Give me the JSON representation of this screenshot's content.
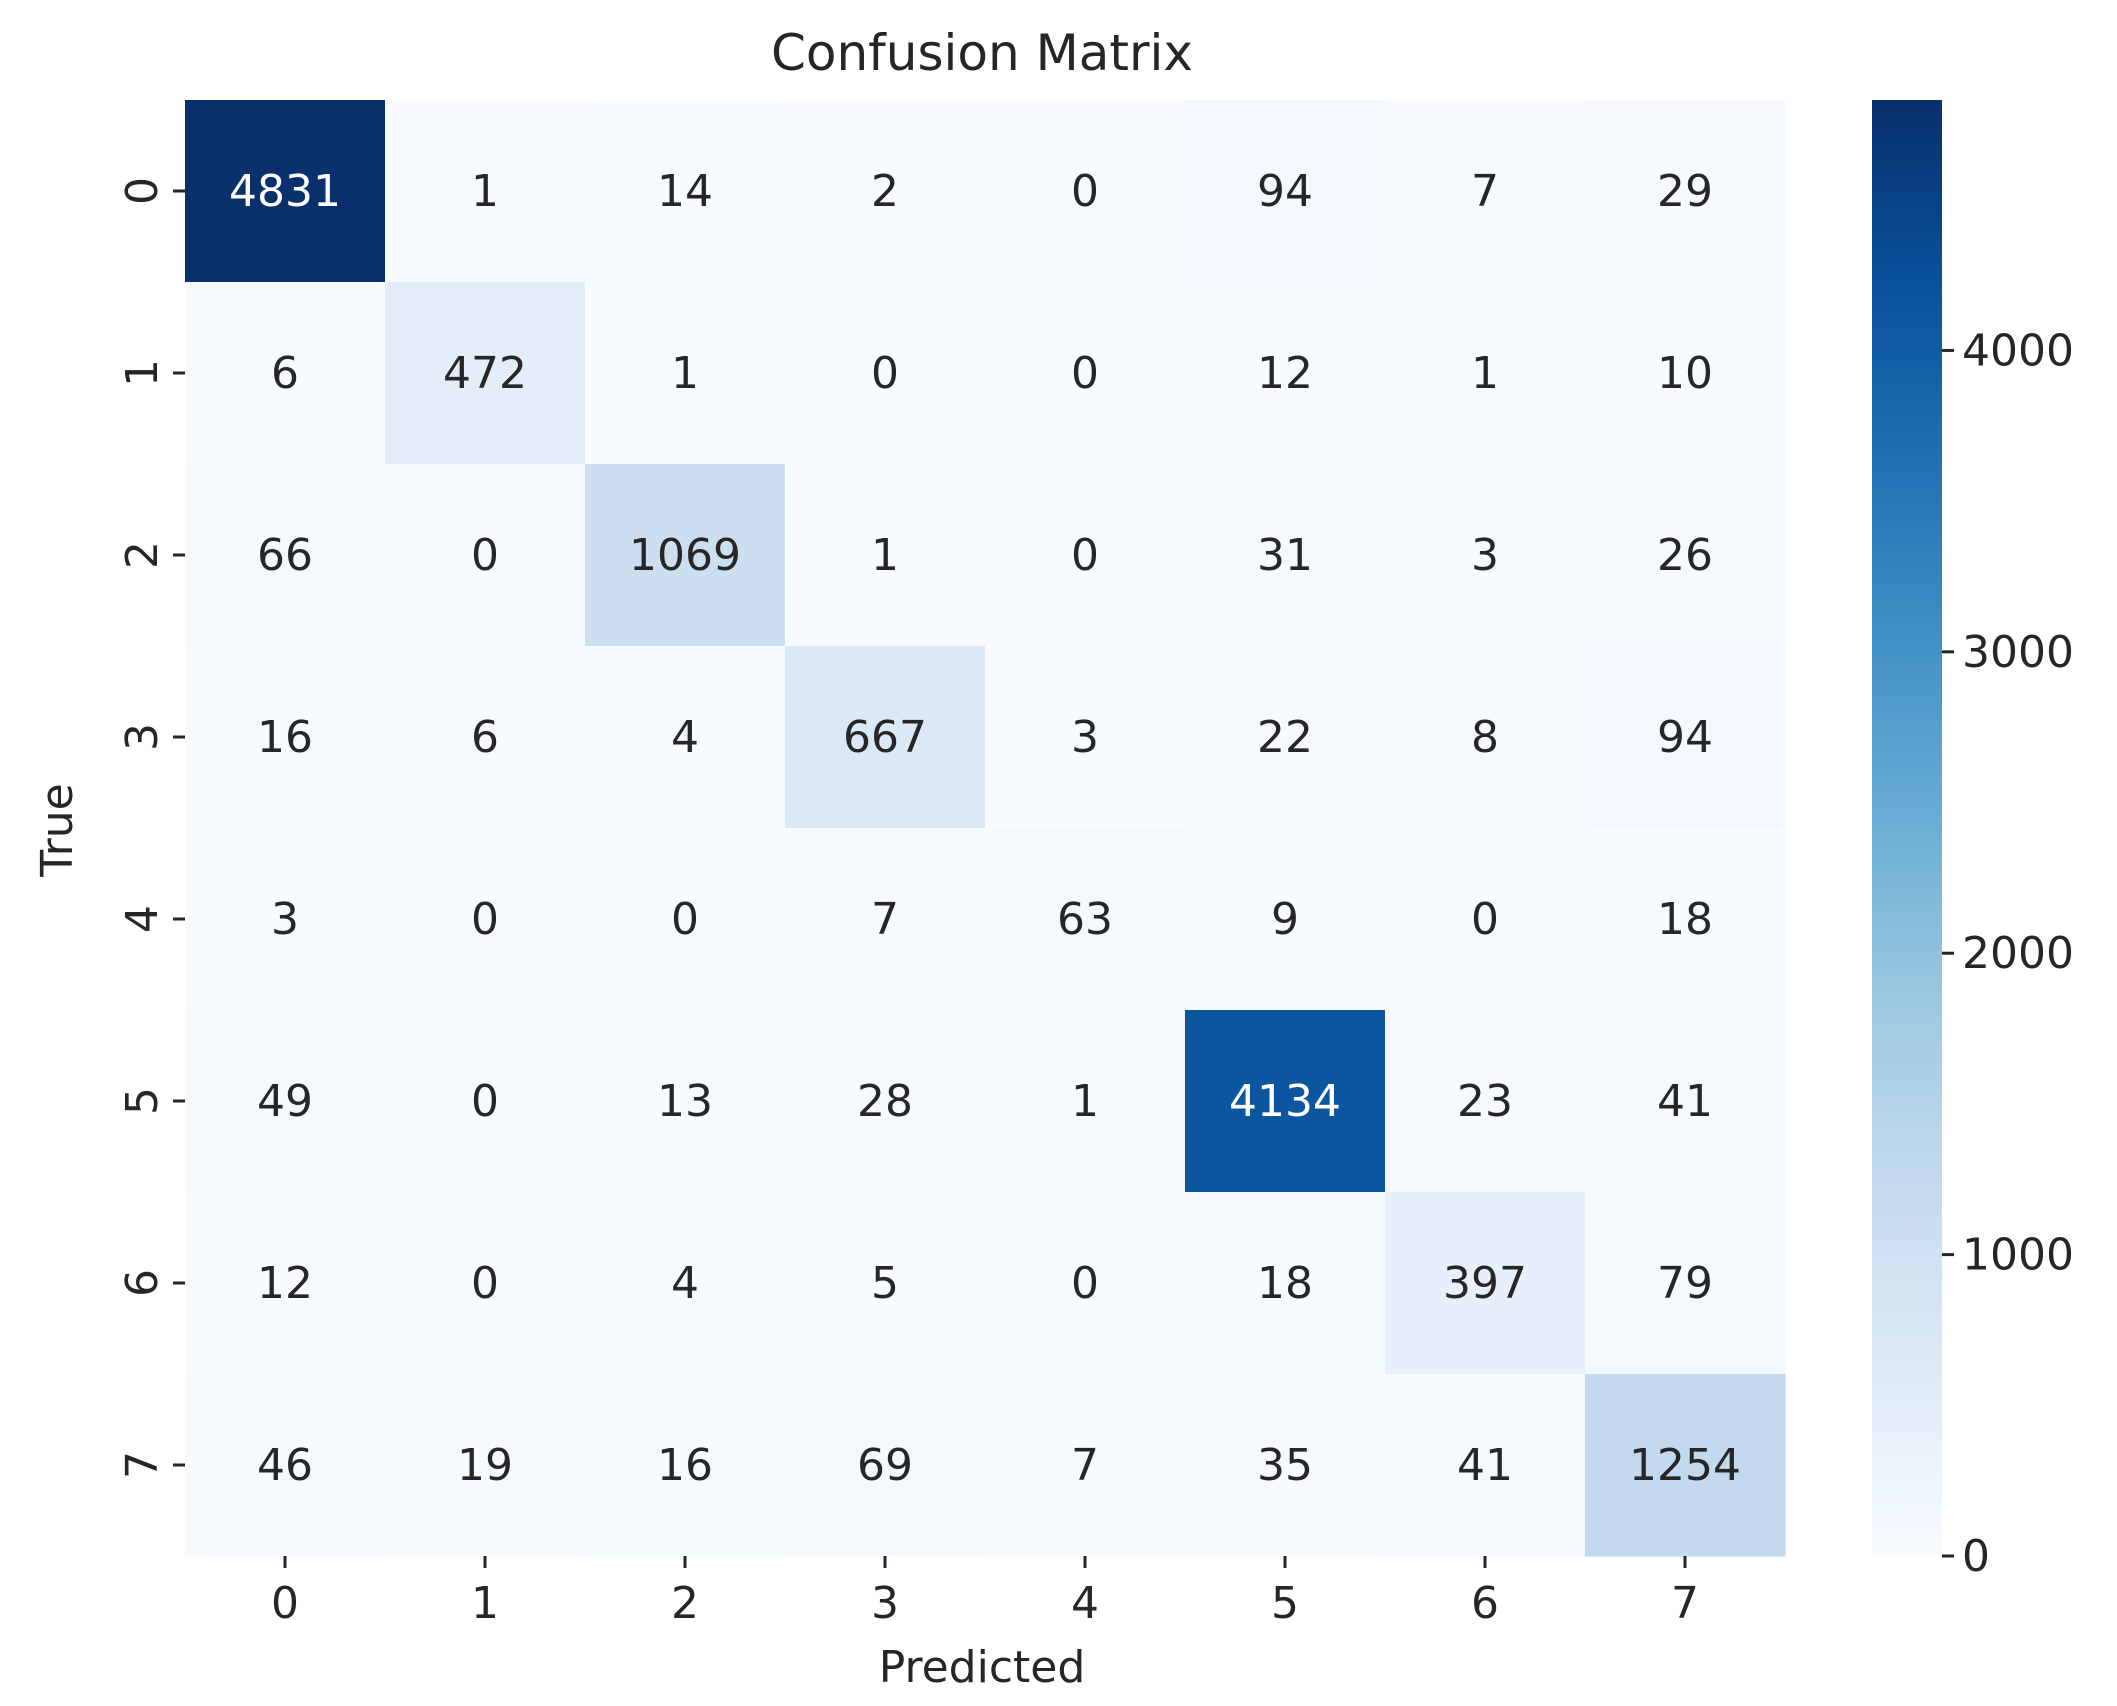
{
  "chart_data": {
    "type": "heatmap",
    "title": "Confusion Matrix",
    "xlabel": "Predicted",
    "ylabel": "True",
    "x_categories": [
      "0",
      "1",
      "2",
      "3",
      "4",
      "5",
      "6",
      "7"
    ],
    "y_categories": [
      "0",
      "1",
      "2",
      "3",
      "4",
      "5",
      "6",
      "7"
    ],
    "values": [
      [
        4831,
        1,
        14,
        2,
        0,
        94,
        7,
        29
      ],
      [
        6,
        472,
        1,
        0,
        0,
        12,
        1,
        10
      ],
      [
        66,
        0,
        1069,
        1,
        0,
        31,
        3,
        26
      ],
      [
        16,
        6,
        4,
        667,
        3,
        22,
        8,
        94
      ],
      [
        3,
        0,
        0,
        7,
        63,
        9,
        0,
        18
      ],
      [
        49,
        0,
        13,
        28,
        1,
        4134,
        23,
        41
      ],
      [
        12,
        0,
        4,
        5,
        0,
        18,
        397,
        79
      ],
      [
        46,
        19,
        16,
        69,
        7,
        35,
        41,
        1254
      ]
    ],
    "colormap": "Blues",
    "colorbar": {
      "range": [
        0,
        4831
      ],
      "ticks": [
        0,
        1000,
        2000,
        3000,
        4000
      ]
    },
    "colors": {
      "cmap_low": "#f7fbff",
      "cmap_high": "#08306b",
      "text_dark": "#262626",
      "text_light": "#ffffff"
    }
  }
}
